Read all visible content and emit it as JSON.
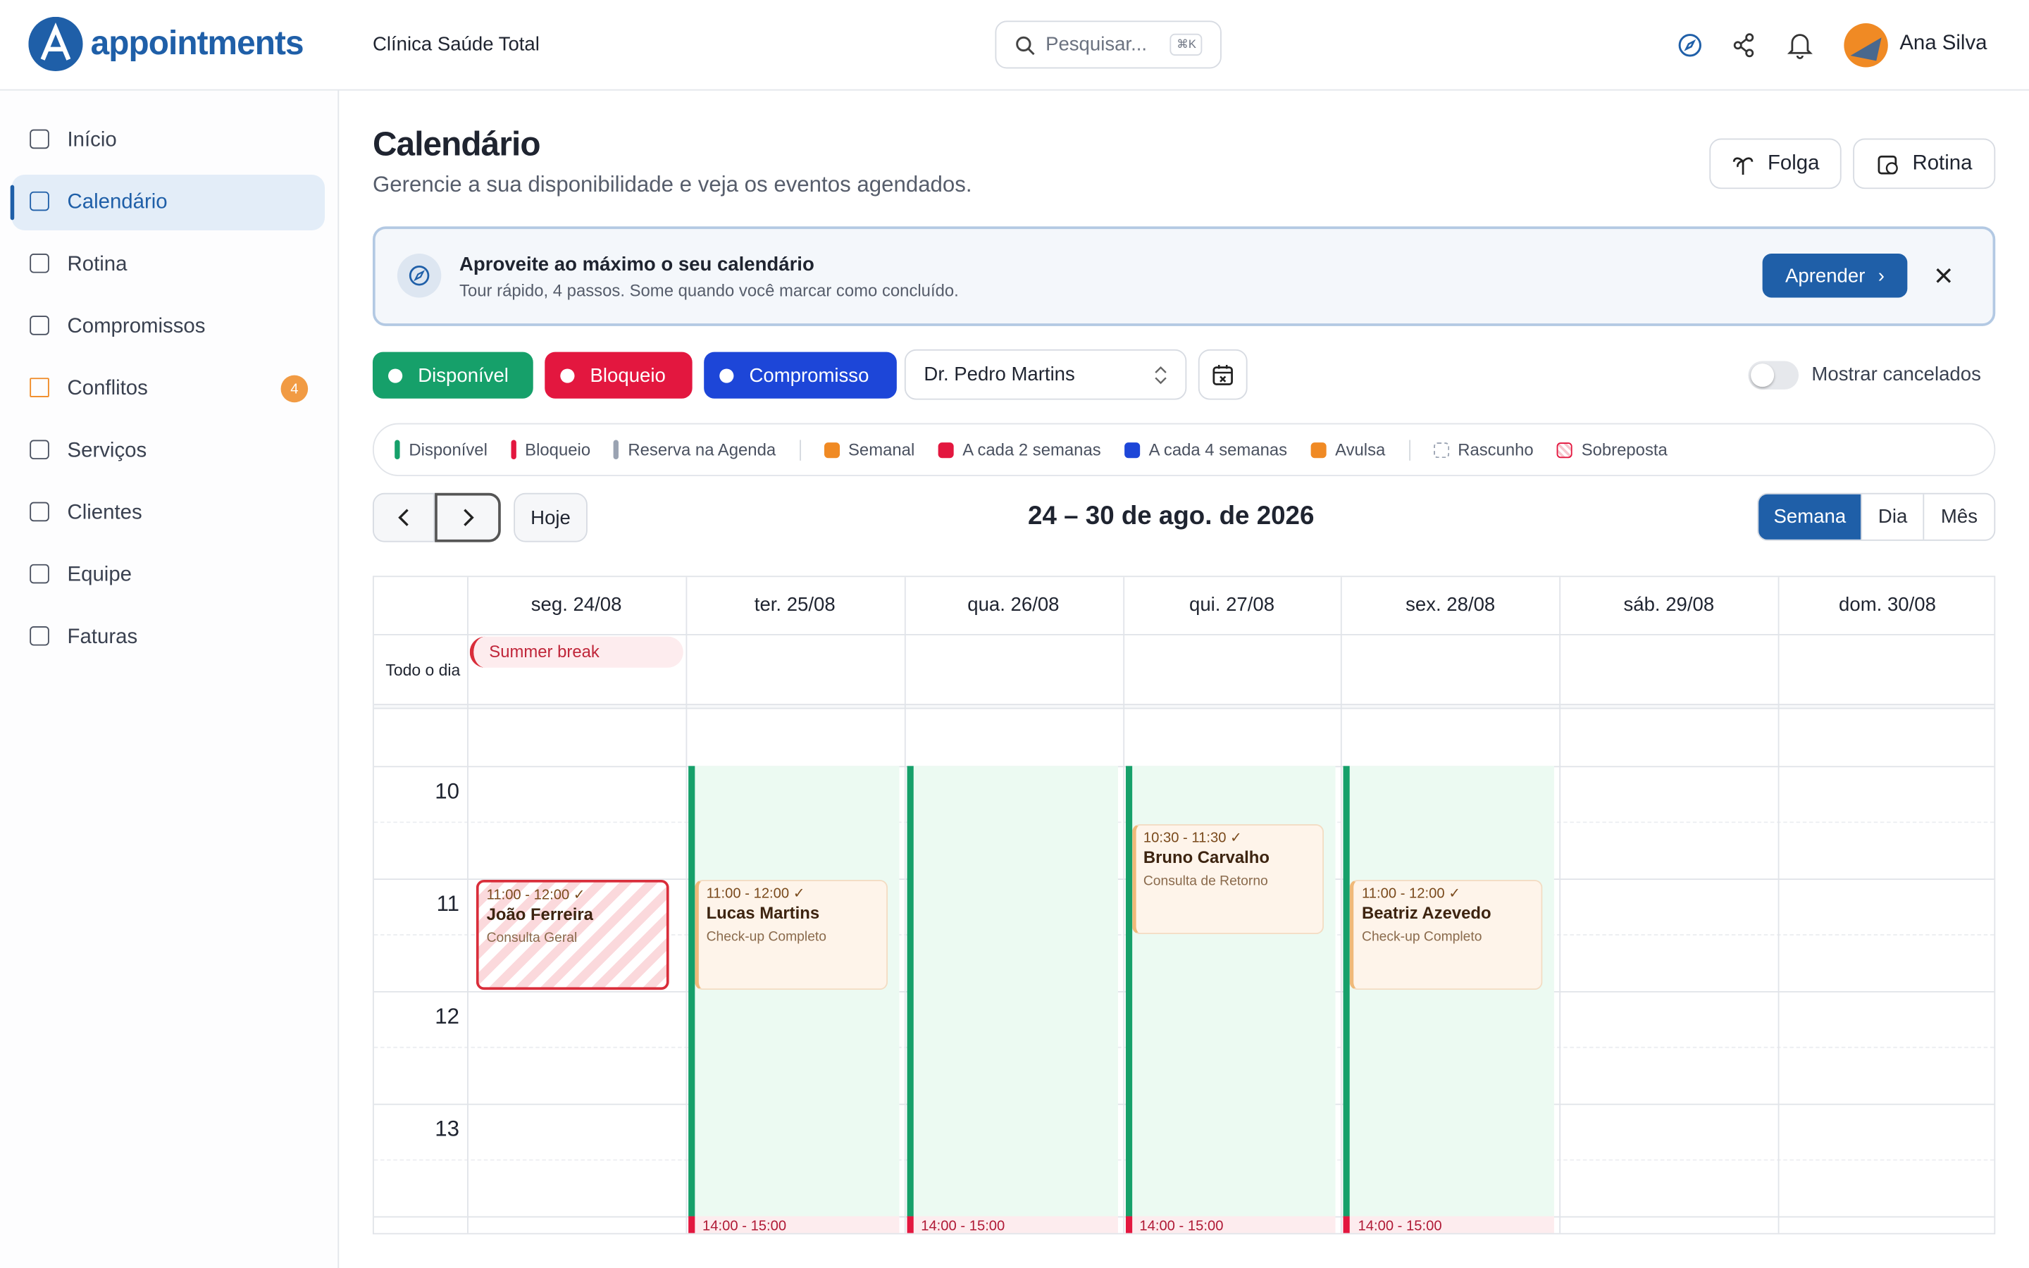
{
  "header": {
    "brand": "appointments",
    "clinic": "Clínica Saúde Total",
    "search_placeholder": "Pesquisar...",
    "search_shortcut": "⌘K",
    "user": "Ana Silva"
  },
  "sidebar": {
    "items": [
      {
        "label": "Início"
      },
      {
        "label": "Calendário",
        "active": true
      },
      {
        "label": "Rotina"
      },
      {
        "label": "Compromissos"
      },
      {
        "label": "Conflitos",
        "badge": 4,
        "color": "#f08a24"
      },
      {
        "label": "Serviços"
      },
      {
        "label": "Clientes"
      },
      {
        "label": "Equipe"
      },
      {
        "label": "Faturas"
      }
    ]
  },
  "page": {
    "title": "Calendário",
    "subtitle": "Gerencie a sua disponibilidade e veja os eventos agendados.",
    "actions": [
      "Folga",
      "Rotina"
    ]
  },
  "banner": {
    "title": "Aproveite ao máximo o seu calendário",
    "text": "Tour rápido, 4 passos. Some quando você marcar como concluído.",
    "button": "Aprender"
  },
  "filters": {
    "chips": [
      {
        "label": "Disponível",
        "color": "#16a06a"
      },
      {
        "label": "Bloqueio",
        "color": "#e3173f"
      },
      {
        "label": "Compromisso",
        "color": "#1d46d8"
      }
    ],
    "provider": "Dr. Pedro Martins",
    "toggle_label": "Mostrar cancelados"
  },
  "legend": [
    {
      "label": "Disponível",
      "color": "#16a06a",
      "shape": "bar"
    },
    {
      "label": "Bloqueio",
      "color": "#e3173f",
      "shape": "bar"
    },
    {
      "label": "Reserva na Agenda",
      "color": "#9aa3b2",
      "shape": "bar"
    },
    {
      "label": "Semanal",
      "color": "#f08a24",
      "shape": "square"
    },
    {
      "label": "A cada 2 semanas",
      "color": "#e3173f",
      "shape": "square"
    },
    {
      "label": "A cada 4 semanas",
      "color": "#1d46d8",
      "shape": "square"
    },
    {
      "label": "Avulsa",
      "color": "#f08a24",
      "shape": "square"
    },
    {
      "label": "Rascunho",
      "color": "#9aa3b2",
      "shape": "dashed"
    },
    {
      "label": "Sobreposta",
      "color": "#e3173f",
      "shape": "overlap"
    }
  ],
  "calendar": {
    "range": "24 – 30 de ago. de 2026",
    "today": "Hoje",
    "views": [
      {
        "label": "Semana",
        "active": true
      },
      {
        "label": "Dia"
      },
      {
        "label": "Mês"
      }
    ],
    "all_day_label": "Todo o dia",
    "hours": [
      10,
      11,
      12,
      13
    ],
    "days": [
      {
        "label": "seg. 24/08",
        "all_day": [
          "Summer break"
        ],
        "events": [
          {
            "time": "11:00 - 12:00 ✓",
            "name": "João Ferreira",
            "service": "Consulta Geral",
            "color": "#d92d3a",
            "overlap": true
          }
        ]
      },
      {
        "label": "ter. 25/08",
        "available": true,
        "events": [
          {
            "time": "11:00 - 12:00 ✓",
            "name": "Lucas Martins",
            "service": "Check-up Completo",
            "color": "#f0b979"
          }
        ],
        "blocks": [
          "14:00 - 15:00"
        ]
      },
      {
        "label": "qua. 26/08",
        "available": true,
        "blocks": [
          "14:00 - 15:00"
        ]
      },
      {
        "label": "qui. 27/08",
        "available": true,
        "events": [
          {
            "time": "10:30 - 11:30 ✓",
            "name": "Bruno Carvalho",
            "service": "Consulta de Retorno",
            "color": "#f0b979"
          }
        ],
        "blocks": [
          "14:00 - 15:00"
        ]
      },
      {
        "label": "sex. 28/08",
        "available": true,
        "events": [
          {
            "time": "11:00 - 12:00 ✓",
            "name": "Beatriz Azevedo",
            "service": "Check-up Completo",
            "color": "#f0b979"
          }
        ],
        "blocks": [
          "14:00 - 15:00"
        ]
      },
      {
        "label": "sáb. 29/08"
      },
      {
        "label": "dom. 30/08"
      }
    ]
  }
}
